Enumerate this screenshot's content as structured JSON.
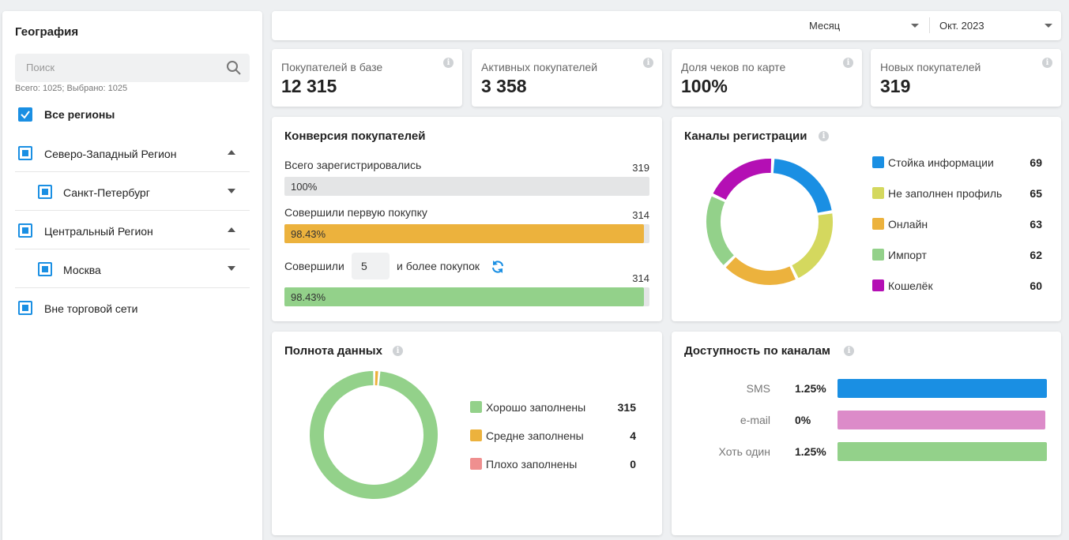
{
  "sidebar": {
    "title": "География",
    "search_placeholder": "Поиск",
    "counts": "Всего: 1025; Выбрано: 1025",
    "all_label": "Все регионы",
    "items": [
      {
        "label": "Северо-Западный Регион"
      },
      {
        "label": "Санкт-Петербург"
      },
      {
        "label": "Центральный Регион"
      },
      {
        "label": "Москва"
      },
      {
        "label": "Вне торговой сети"
      }
    ]
  },
  "topbar": {
    "period": "Месяц",
    "month": "Окт. 2023"
  },
  "kpis": [
    {
      "label": "Покупателей в базе",
      "value": "12 315"
    },
    {
      "label": "Активных покупателей",
      "value": "3 358"
    },
    {
      "label": "Доля чеков по карте",
      "value": "100%"
    },
    {
      "label": "Новых покупателей",
      "value": "319"
    }
  ],
  "info_glyph": "i",
  "conversion": {
    "title": "Конверсия покупателей",
    "rows": [
      {
        "label": "Всего зарегистрировались",
        "count": "319",
        "pct_text": "100%",
        "fill": 0,
        "color": "#e4e5e6"
      },
      {
        "label": "Совершили первую покупку",
        "count": "314",
        "pct_text": "98.43%",
        "fill": 0.9843,
        "color": "#ecb23d"
      },
      {
        "count": "314",
        "pct_text": "98.43%",
        "fill": 0.9843,
        "color": "#93d18a"
      }
    ],
    "third_prefix": "Совершили",
    "third_n": "5",
    "third_suffix": "и более покупок"
  },
  "channels": {
    "title": "Каналы регистрации",
    "items": [
      {
        "label": "Стойка информации",
        "value": 69,
        "color": "#1a8fe3"
      },
      {
        "label": "Не заполнен профиль",
        "value": 65,
        "color": "#d4d85e"
      },
      {
        "label": "Онлайн",
        "value": 63,
        "color": "#ecb23d"
      },
      {
        "label": "Импорт",
        "value": 62,
        "color": "#93d18a"
      },
      {
        "label": "Кошелёк",
        "value": 60,
        "color": "#b40fb4"
      }
    ]
  },
  "completeness": {
    "title": "Полнота данных",
    "items": [
      {
        "label": "Хорошо заполнены",
        "value": 315,
        "color": "#93d18a"
      },
      {
        "label": "Средне заполнены",
        "value": 4,
        "color": "#ecb23d"
      },
      {
        "label": "Плохо заполнены",
        "value": 0,
        "color": "#ef8f8f"
      }
    ]
  },
  "availability": {
    "title": "Доступность по каналам",
    "items": [
      {
        "label": "SMS",
        "pct": "1.25%",
        "color": "#1a8fe3"
      },
      {
        "label": "e-mail",
        "pct": "0%",
        "color": "#dc8bc9"
      },
      {
        "label": "Хоть один",
        "pct": "1.25%",
        "color": "#93d18a"
      }
    ]
  }
}
